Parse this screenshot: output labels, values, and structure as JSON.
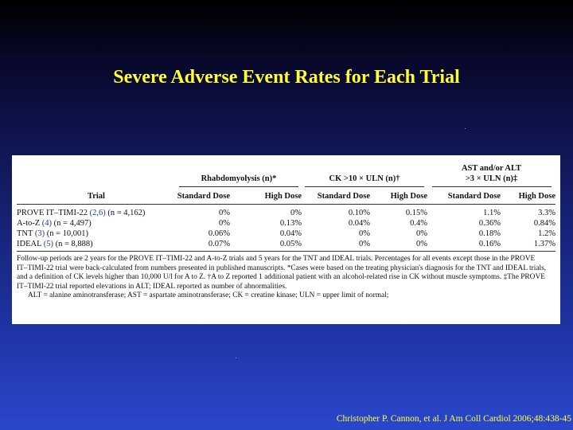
{
  "slide": {
    "title": "Severe Adverse Event Rates for Each Trial",
    "citation": "Christopher P. Cannon, et al. J Am Coll Cardiol 2006;48:438-45"
  },
  "table": {
    "group_headers": {
      "rhabdo": "Rhabdomyolysis (n)*",
      "ck": "CK >10 × ULN (n)†",
      "ast_line1": "AST and/or ALT",
      "ast_line2": ">3 × ULN (n)‡"
    },
    "columns": {
      "trial": "Trial",
      "std1": "Standard Dose",
      "high1": "High Dose",
      "std2": "Standard Dose",
      "high2": "High Dose",
      "std3": "Standard Dose",
      "high3": "High Dose"
    },
    "rows": [
      {
        "name": "PROVE IT–TIMI-22",
        "ref": "(2,6)",
        "n": "(n = 4,162)",
        "v": [
          "0%",
          "0%",
          "0.10%",
          "0.15%",
          "1.1%",
          "3.3%"
        ]
      },
      {
        "name": "A-to-Z",
        "ref": "(4)",
        "n": "(n = 4,497)",
        "v": [
          "0%",
          "0.13%",
          "0.04%",
          "0.4%",
          "0.36%",
          "0.84%"
        ]
      },
      {
        "name": "TNT",
        "ref": "(3)",
        "n": "(n = 10,001)",
        "v": [
          "0.06%",
          "0.04%",
          "0%",
          "0%",
          "0.18%",
          "1.2%"
        ]
      },
      {
        "name": "IDEAL",
        "ref": "(5)",
        "n": "(n = 8,888)",
        "v": [
          "0.07%",
          "0.05%",
          "0%",
          "0%",
          "0.16%",
          "1.37%"
        ]
      }
    ],
    "footnote_lines": [
      "Follow-up periods are 2 years for the PROVE IT–TIMI-22 and A-to-Z trials and 5 years for the TNT and IDEAL trials. Percentages for all events except those in the PROVE",
      "IT–TIMI-22 trial were back-calculated from numbers presented in published manuscripts. *Cases were based on the treating physician's diagnosis for the TNT and IDEAL trials,",
      "and a definition of CK levels higher than 10,000 U/l for A to Z. †A to Z reported 1 additional patient with an alcohol-related rise in CK without muscle symptoms. ‡The PROVE",
      "IT–TIMI-22 trial reported elevations in ALT; IDEAL reported as number of abnormalities."
    ],
    "abbreviations": "ALT = alanine aminotransferase; AST = aspartate aminotransferase; CK = creatine kinase; ULN = upper limit of normal;"
  }
}
